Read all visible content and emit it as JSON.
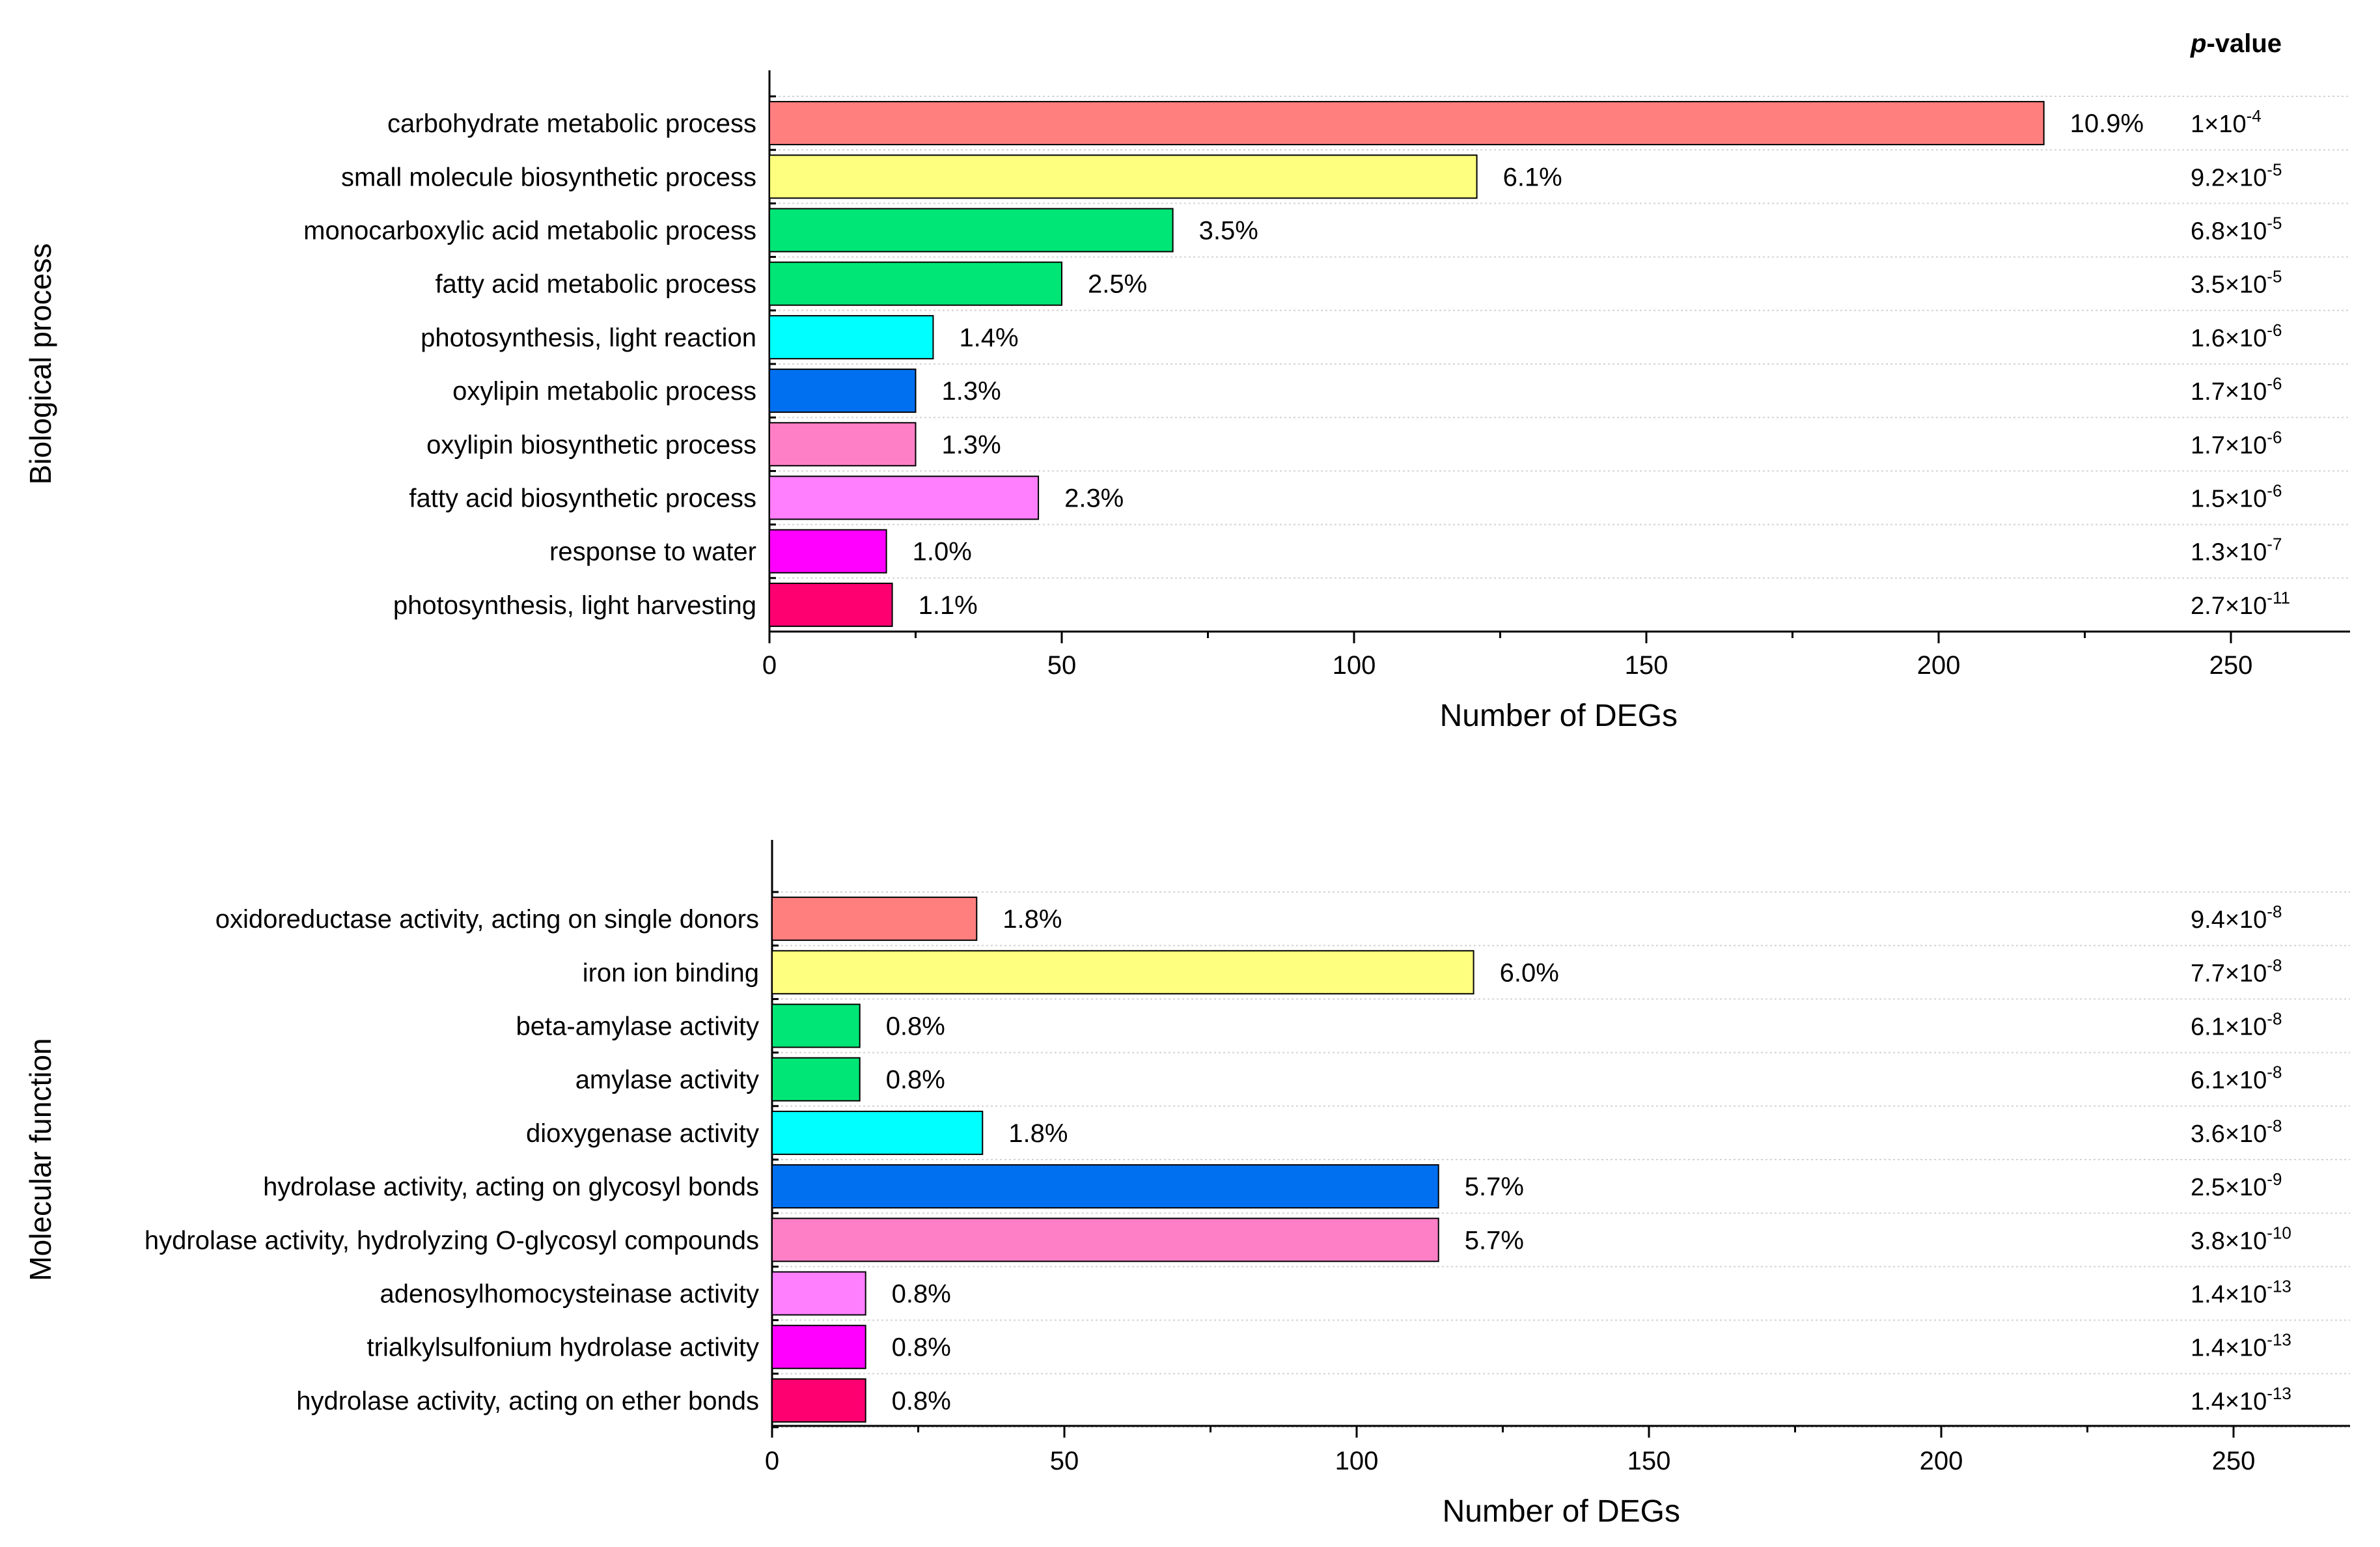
{
  "pvalue_header": {
    "prefix": "p",
    "suffix": "-value"
  },
  "chart_data": [
    {
      "type": "bar",
      "orientation": "horizontal",
      "ylabel": "Biological process",
      "xlabel": "Number of DEGs",
      "xlim": [
        0,
        270
      ],
      "xticks": [
        0,
        50,
        100,
        150,
        200,
        250
      ],
      "categories": [
        "carbohydrate metabolic process",
        "small molecule biosynthetic process",
        "monocarboxylic acid metabolic process",
        "fatty acid metabolic process",
        "photosynthesis, light reaction",
        "oxylipin metabolic process",
        "oxylipin biosynthetic process",
        "fatty acid biosynthetic process",
        "response to water",
        "photosynthesis, light harvesting"
      ],
      "values": [
        218,
        121,
        69,
        50,
        28,
        25,
        25,
        46,
        20,
        21
      ],
      "percent_labels": [
        "10.9%",
        "6.1%",
        "3.5%",
        "2.5%",
        "1.4%",
        "1.3%",
        "1.3%",
        "2.3%",
        "1.0%",
        "1.1%"
      ],
      "p_values": [
        {
          "mant": "1",
          "exp": "-4"
        },
        {
          "mant": "9.2",
          "exp": "-5"
        },
        {
          "mant": "6.8",
          "exp": "-5"
        },
        {
          "mant": "3.5",
          "exp": "-5"
        },
        {
          "mant": "1.6",
          "exp": "-6"
        },
        {
          "mant": "1.7",
          "exp": "-6"
        },
        {
          "mant": "1.7",
          "exp": "-6"
        },
        {
          "mant": "1.5",
          "exp": "-6"
        },
        {
          "mant": "1.3",
          "exp": "-7"
        },
        {
          "mant": "2.7",
          "exp": "-11"
        }
      ],
      "colors": [
        "#ff7f7f",
        "#ffff7f",
        "#00e676",
        "#00e676",
        "#00ffff",
        "#0070f0",
        "#ff7fc6",
        "#ff7fff",
        "#ff00ff",
        "#ff0070"
      ]
    },
    {
      "type": "bar",
      "orientation": "horizontal",
      "ylabel": "Molecular function",
      "xlabel": "Number of DEGs",
      "xlim": [
        0,
        270
      ],
      "xticks": [
        0,
        50,
        100,
        150,
        200,
        250
      ],
      "categories": [
        "oxidoreductase activity, acting on single donors",
        "iron ion binding",
        "beta-amylase activity",
        "amylase activity",
        "dioxygenase activity",
        "hydrolase activity, acting on glycosyl bonds",
        "hydrolase activity, hydrolyzing O-glycosyl compounds",
        "adenosylhomocysteinase activity",
        "trialkylsulfonium hydrolase activity",
        "hydrolase activity, acting on ether bonds"
      ],
      "values": [
        35,
        120,
        15,
        15,
        36,
        114,
        114,
        16,
        16,
        16
      ],
      "percent_labels": [
        "1.8%",
        "6.0%",
        "0.8%",
        "0.8%",
        "1.8%",
        "5.7%",
        "5.7%",
        "0.8%",
        "0.8%",
        "0.8%"
      ],
      "p_values": [
        {
          "mant": "9.4",
          "exp": "-8"
        },
        {
          "mant": "7.7",
          "exp": "-8"
        },
        {
          "mant": "6.1",
          "exp": "-8"
        },
        {
          "mant": "6.1",
          "exp": "-8"
        },
        {
          "mant": "3.6",
          "exp": "-8"
        },
        {
          "mant": "2.5",
          "exp": "-9"
        },
        {
          "mant": "3.8",
          "exp": "-10"
        },
        {
          "mant": "1.4",
          "exp": "-13"
        },
        {
          "mant": "1.4",
          "exp": "-13"
        },
        {
          "mant": "1.4",
          "exp": "-13"
        }
      ],
      "colors": [
        "#ff7f7f",
        "#ffff7f",
        "#00e676",
        "#00e676",
        "#00ffff",
        "#0070f0",
        "#ff7fc6",
        "#ff7fff",
        "#ff00ff",
        "#ff0070"
      ]
    }
  ]
}
